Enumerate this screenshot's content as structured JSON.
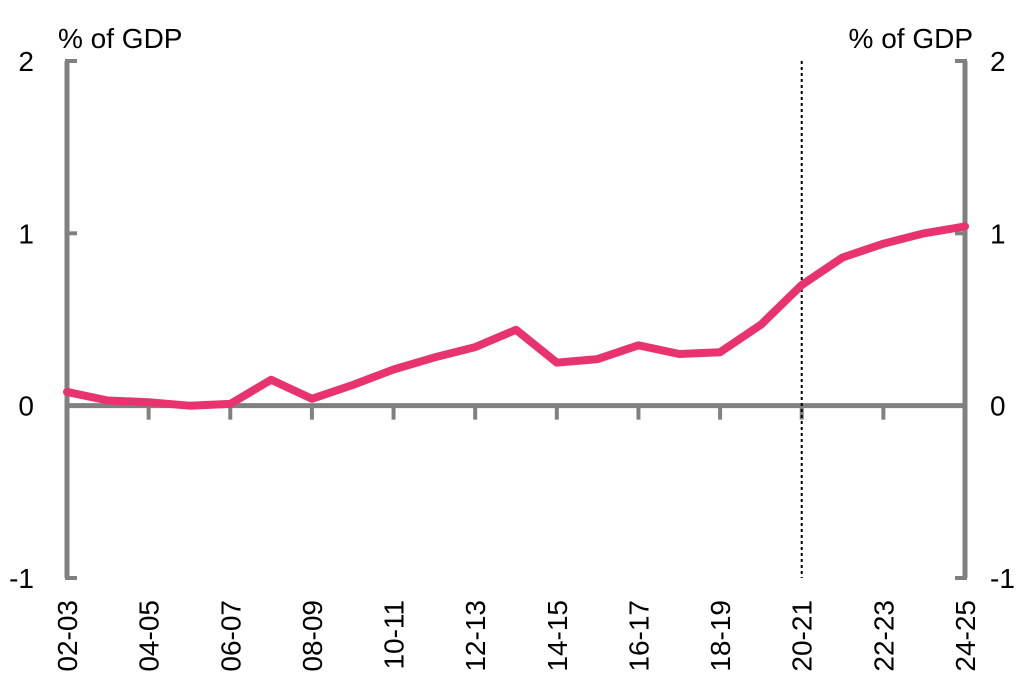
{
  "chart_data": {
    "type": "line",
    "title": "",
    "xlabel": "",
    "ylabel": "",
    "y_unit_left": "% of GDP",
    "y_unit_right": "% of GDP",
    "ylim": [
      -1,
      2
    ],
    "yticks": [
      "2",
      "1",
      "0",
      "-1"
    ],
    "grid": false,
    "legend": "none",
    "categories": [
      "02-03",
      "03-04",
      "04-05",
      "05-06",
      "06-07",
      "07-08",
      "08-09",
      "09-10",
      "10-11",
      "11-12",
      "12-13",
      "13-14",
      "14-15",
      "15-16",
      "16-17",
      "17-18",
      "18-19",
      "19-20",
      "20-21",
      "21-22",
      "22-23",
      "23-24",
      "24-25"
    ],
    "x_tick_labels": [
      "02-03",
      "04-05",
      "06-07",
      "08-09",
      "10-11",
      "12-13",
      "14-15",
      "16-17",
      "18-19",
      "20-21",
      "22-23",
      "24-25"
    ],
    "series": [
      {
        "name": "",
        "color": "#e8336e",
        "values": [
          0.08,
          0.03,
          0.02,
          0.0,
          0.01,
          0.15,
          0.04,
          0.12,
          0.21,
          0.28,
          0.34,
          0.44,
          0.25,
          0.27,
          0.35,
          0.3,
          0.31,
          0.47,
          0.7,
          0.86,
          0.94,
          1.0,
          1.04
        ]
      }
    ],
    "vertical_marker": {
      "category": "20-21",
      "style": "dotted",
      "color": "#000000"
    },
    "axis_color": "#808080"
  }
}
